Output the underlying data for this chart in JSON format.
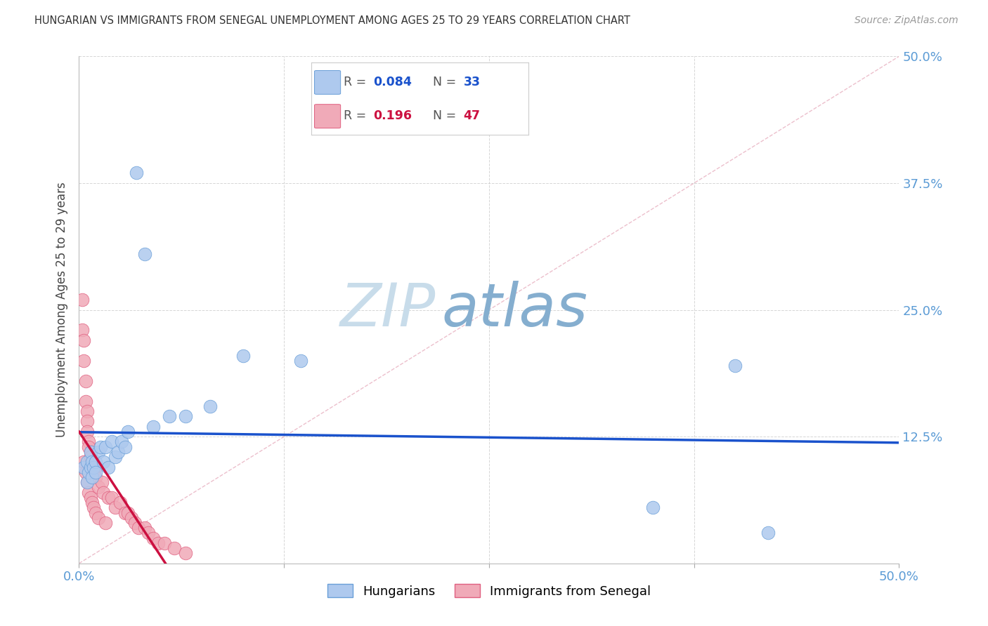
{
  "title": "HUNGARIAN VS IMMIGRANTS FROM SENEGAL UNEMPLOYMENT AMONG AGES 25 TO 29 YEARS CORRELATION CHART",
  "source": "Source: ZipAtlas.com",
  "ylabel": "Unemployment Among Ages 25 to 29 years",
  "background_color": "#ffffff",
  "xlim": [
    0,
    0.5
  ],
  "ylim": [
    0,
    0.5
  ],
  "xtick_positions": [
    0.0,
    0.125,
    0.25,
    0.375,
    0.5
  ],
  "xtick_labels": [
    "0.0%",
    "",
    "",
    "",
    "50.0%"
  ],
  "ytick_positions": [
    0.0,
    0.125,
    0.25,
    0.375,
    0.5
  ],
  "ytick_labels": [
    "",
    "12.5%",
    "25.0%",
    "37.5%",
    "50.0%"
  ],
  "grid_color": "#cccccc",
  "hungarian_fill": "#aec9ee",
  "hungarian_edge": "#6a9fd8",
  "senegal_fill": "#f0aab8",
  "senegal_edge": "#e06080",
  "hungarian_trend_color": "#1a52cc",
  "senegal_trend_color": "#cc1040",
  "diagonal_color": "#cccccc",
  "tick_color": "#5b9bd5",
  "watermark_zip_color": "#c5d8ee",
  "watermark_atlas_color": "#7eaad4",
  "title_fontsize": 10.5,
  "source_fontsize": 10,
  "label_fontsize": 13,
  "legend_fontsize": 13,
  "hungarian_x": [
    0.003,
    0.005,
    0.005,
    0.006,
    0.007,
    0.007,
    0.008,
    0.008,
    0.009,
    0.01,
    0.01,
    0.012,
    0.013,
    0.015,
    0.016,
    0.018,
    0.02,
    0.022,
    0.024,
    0.026,
    0.028,
    0.03,
    0.035,
    0.04,
    0.045,
    0.055,
    0.065,
    0.08,
    0.1,
    0.135,
    0.35,
    0.4,
    0.42
  ],
  "hungarian_y": [
    0.095,
    0.08,
    0.1,
    0.09,
    0.11,
    0.095,
    0.1,
    0.085,
    0.095,
    0.1,
    0.09,
    0.11,
    0.115,
    0.1,
    0.115,
    0.095,
    0.12,
    0.105,
    0.11,
    0.12,
    0.115,
    0.13,
    0.385,
    0.305,
    0.135,
    0.145,
    0.145,
    0.155,
    0.205,
    0.2,
    0.055,
    0.195,
    0.03
  ],
  "senegal_x": [
    0.002,
    0.002,
    0.003,
    0.003,
    0.003,
    0.004,
    0.004,
    0.004,
    0.005,
    0.005,
    0.005,
    0.005,
    0.006,
    0.006,
    0.006,
    0.007,
    0.007,
    0.007,
    0.008,
    0.008,
    0.008,
    0.009,
    0.009,
    0.01,
    0.01,
    0.01,
    0.012,
    0.012,
    0.014,
    0.015,
    0.016,
    0.018,
    0.02,
    0.022,
    0.025,
    0.028,
    0.03,
    0.032,
    0.034,
    0.036,
    0.04,
    0.042,
    0.045,
    0.048,
    0.052,
    0.058,
    0.065
  ],
  "senegal_y": [
    0.26,
    0.23,
    0.22,
    0.2,
    0.1,
    0.18,
    0.16,
    0.09,
    0.15,
    0.14,
    0.13,
    0.08,
    0.12,
    0.115,
    0.07,
    0.11,
    0.105,
    0.065,
    0.1,
    0.095,
    0.06,
    0.09,
    0.055,
    0.095,
    0.085,
    0.05,
    0.075,
    0.045,
    0.08,
    0.07,
    0.04,
    0.065,
    0.065,
    0.055,
    0.06,
    0.05,
    0.05,
    0.045,
    0.04,
    0.035,
    0.035,
    0.03,
    0.025,
    0.02,
    0.02,
    0.015,
    0.01
  ]
}
